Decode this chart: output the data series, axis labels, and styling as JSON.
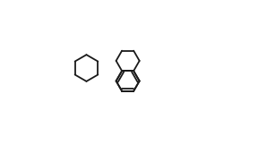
{
  "bg_color": "#ffffff",
  "line_color": "#1a1a1a",
  "line_width": 1.3,
  "figsize": [
    3.07,
    1.81
  ],
  "dpi": 100
}
